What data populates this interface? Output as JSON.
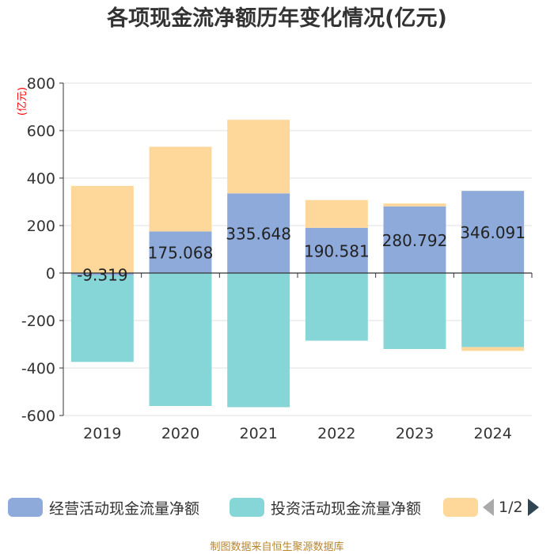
{
  "chart_data": {
    "type": "bar",
    "stacked": true,
    "title": "各项现金流净额历年变化情况(亿元)",
    "ylabel": "(亿元)",
    "categories": [
      "2019",
      "2020",
      "2021",
      "2022",
      "2023",
      "2024"
    ],
    "ylim": [
      -600,
      800
    ],
    "yticks": [
      -600,
      -400,
      -200,
      0,
      200,
      400,
      600,
      800
    ],
    "series": [
      {
        "name": "经营活动现金流量净额",
        "color": "#8eaadb",
        "values": [
          -9.319,
          175.068,
          335.648,
          190.581,
          280.792,
          346.091
        ],
        "labels": [
          "-9.319",
          "175.068",
          "335.648",
          "190.581",
          "280.792",
          "346.091"
        ]
      },
      {
        "name": "投资活动现金流量净额",
        "color": "#86d6d8",
        "values": [
          -365,
          -560,
          -565,
          -285,
          -320,
          -312
        ]
      },
      {
        "name": "",
        "color": "#fdd89a",
        "values": [
          367,
          357,
          310,
          117,
          12,
          -16
        ]
      }
    ],
    "legend_position": "bottom"
  },
  "pager": {
    "text": "1/2"
  },
  "source": "制图数据来自恒生聚源数据库"
}
